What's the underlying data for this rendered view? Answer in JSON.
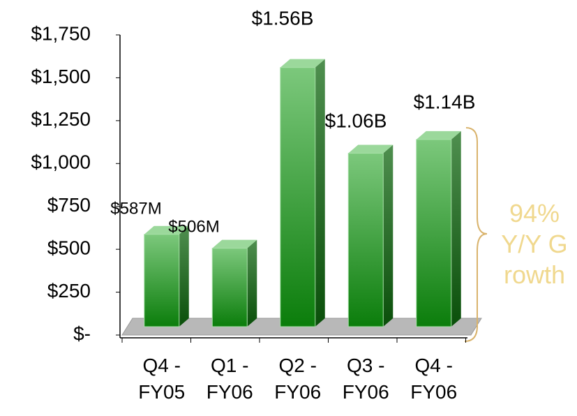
{
  "chart_data": {
    "type": "bar3d",
    "categories": [
      "Q4 - FY05",
      "Q1 - FY06",
      "Q2 - FY06",
      "Q3 - FY06",
      "Q4 - FY06"
    ],
    "values": [
      587,
      506,
      1560,
      1060,
      1140
    ],
    "value_labels": [
      "$587M",
      "$506M",
      "$1.56B",
      "$1.06B",
      "$1.14B"
    ],
    "color": "#1e8f1e",
    "ylim": [
      0,
      1750
    ],
    "yticks": [
      {
        "value": 0,
        "label": "$-"
      },
      {
        "value": 250,
        "label": "$250"
      },
      {
        "value": 500,
        "label": "$500"
      },
      {
        "value": 750,
        "label": "$750"
      },
      {
        "value": 1000,
        "label": "$1,000"
      },
      {
        "value": 1250,
        "label": "$1,250"
      },
      {
        "value": 1500,
        "label": "$1,500"
      },
      {
        "value": 1750,
        "label": "$1,750"
      }
    ],
    "annotation": "94% Y/Y Growth",
    "annotation_color": "#f0d88e"
  }
}
